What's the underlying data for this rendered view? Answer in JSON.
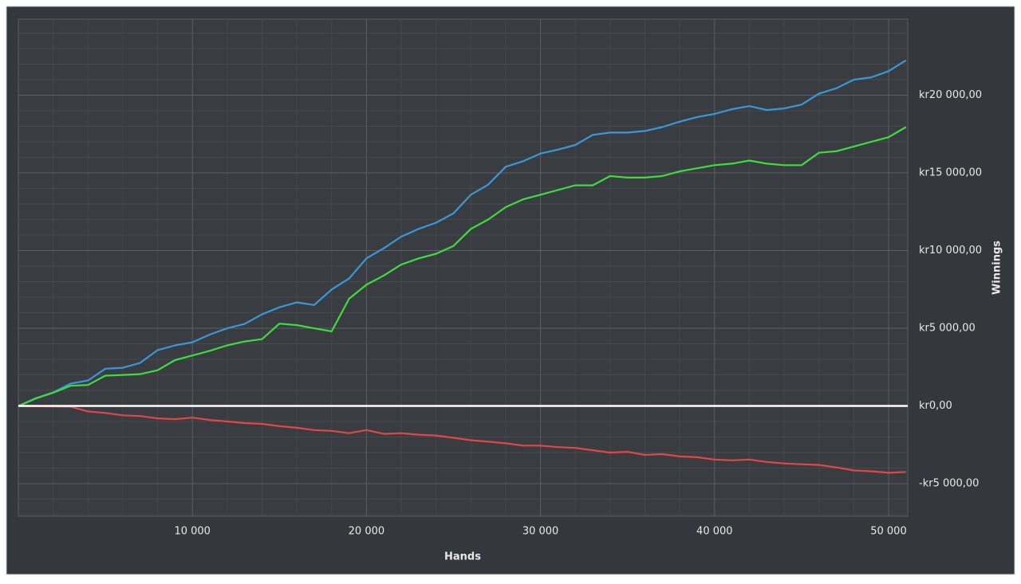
{
  "chart_data": {
    "type": "line",
    "x_label": "Hands",
    "y_label": "Winnings",
    "x": [
      0,
      1000,
      2000,
      3000,
      4000,
      5000,
      6000,
      7000,
      8000,
      9000,
      10000,
      11000,
      12000,
      13000,
      14000,
      15000,
      16000,
      17000,
      18000,
      19000,
      20000,
      21000,
      22000,
      23000,
      24000,
      25000,
      26000,
      27000,
      28000,
      29000,
      30000,
      31000,
      32000,
      33000,
      34000,
      35000,
      36000,
      37000,
      38000,
      39000,
      40000,
      41000,
      42000,
      43000,
      44000,
      45000,
      46000,
      47000,
      48000,
      49000,
      50000,
      51000
    ],
    "series": [
      {
        "color": "#3a98d8",
        "values": [
          0,
          500,
          870,
          1440,
          1640,
          2400,
          2460,
          2770,
          3600,
          3900,
          4100,
          4600,
          5000,
          5280,
          5900,
          6350,
          6670,
          6500,
          7500,
          8200,
          9500,
          10150,
          10900,
          11400,
          11800,
          12400,
          13600,
          14250,
          15400,
          15750,
          16250,
          16500,
          16800,
          17450,
          17600,
          17600,
          17700,
          17950,
          18300,
          18600,
          18800,
          19100,
          19300,
          19050,
          19150,
          19400,
          20100,
          20450,
          21000,
          21150,
          21550,
          22250
        ]
      },
      {
        "color": "#3fdc3f",
        "values": [
          0,
          480,
          850,
          1300,
          1350,
          1950,
          2000,
          2050,
          2300,
          2950,
          3250,
          3550,
          3900,
          4150,
          4300,
          5300,
          5200,
          5000,
          4800,
          6900,
          7800,
          8400,
          9100,
          9500,
          9800,
          10300,
          11400,
          12000,
          12800,
          13300,
          13600,
          13900,
          14200,
          14200,
          14800,
          14700,
          14700,
          14800,
          15100,
          15300,
          15500,
          15600,
          15800,
          15600,
          15500,
          15500,
          16300,
          16400,
          16700,
          17000,
          17300,
          17950
        ]
      },
      {
        "color": "#e04848",
        "values": [
          0,
          -20,
          -30,
          -50,
          -350,
          -450,
          -600,
          -650,
          -800,
          -850,
          -750,
          -900,
          -1000,
          -1100,
          -1150,
          -1300,
          -1400,
          -1550,
          -1600,
          -1750,
          -1550,
          -1800,
          -1750,
          -1850,
          -1900,
          -2050,
          -2200,
          -2300,
          -2400,
          -2550,
          -2550,
          -2650,
          -2700,
          -2850,
          -3000,
          -2950,
          -3150,
          -3100,
          -3250,
          -3300,
          -3450,
          -3500,
          -3450,
          -3600,
          -3700,
          -3750,
          -3800,
          -3950,
          -4150,
          -4200,
          -4300,
          -4250
        ]
      }
    ],
    "xlim": [
      0,
      51100
    ],
    "ylim": [
      -7100,
      24900
    ],
    "xticks": [
      {
        "value": 10000,
        "label": "10 000"
      },
      {
        "value": 20000,
        "label": "20 000"
      },
      {
        "value": 30000,
        "label": "30 000"
      },
      {
        "value": 40000,
        "label": "40 000"
      },
      {
        "value": 50000,
        "label": "50 000"
      }
    ],
    "yticks": [
      {
        "value": -5000,
        "label": "-kr5 000,00"
      },
      {
        "value": 0,
        "label": "kr0,00"
      },
      {
        "value": 5000,
        "label": "kr5 000,00"
      },
      {
        "value": 10000,
        "label": "kr10 000,00"
      },
      {
        "value": 15000,
        "label": "kr15 000,00"
      },
      {
        "value": 20000,
        "label": "kr20 000,00"
      }
    ],
    "x_minor_ticks": [
      2000,
      4000,
      6000,
      8000,
      12000,
      14000,
      16000,
      18000,
      22000,
      24000,
      26000,
      28000,
      32000,
      34000,
      36000,
      38000,
      42000,
      44000,
      46000,
      48000
    ],
    "y_minor_ticks": [
      -7000,
      -6000,
      -4000,
      -3000,
      -2000,
      -1000,
      1000,
      2000,
      3000,
      4000,
      6000,
      7000,
      8000,
      9000,
      11000,
      12000,
      13000,
      14000,
      16000,
      17000,
      18000,
      19000,
      21000,
      22000,
      23000,
      24000
    ],
    "zero_line": 0,
    "zero_line_color": "#ffffff",
    "grid": true
  }
}
